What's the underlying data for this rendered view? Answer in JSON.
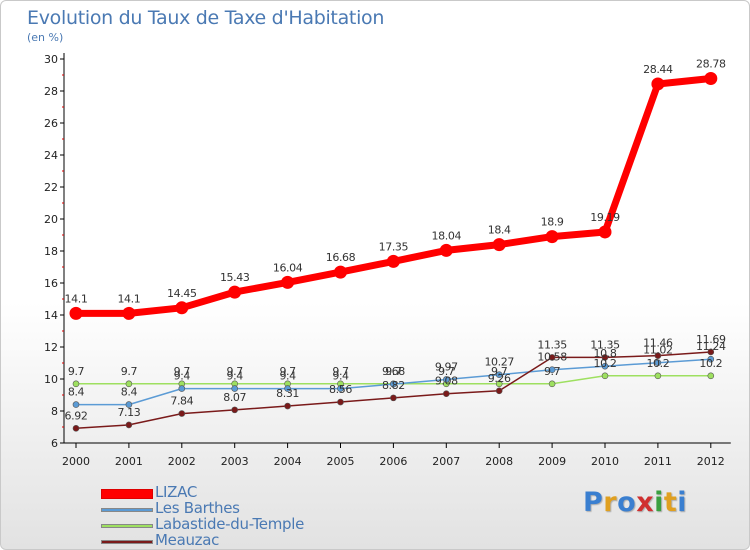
{
  "header": {
    "title": "Evolution du Taux de Taxe d'Habitation",
    "subtitle": "(en %)"
  },
  "brand": {
    "logo_text": "Proxiti"
  },
  "chart_data": {
    "type": "line",
    "title": "Evolution du Taux de Taxe d'Habitation",
    "ylabel": "(en %)",
    "xlabel": "",
    "ylim": [
      6,
      30
    ],
    "yticks": [
      6,
      8,
      10,
      12,
      14,
      16,
      18,
      20,
      22,
      24,
      26,
      28,
      30
    ],
    "x": [
      "2000",
      "2001",
      "2002",
      "2003",
      "2004",
      "2005",
      "2006",
      "2007",
      "2008",
      "2009",
      "2010",
      "2011",
      "2012"
    ],
    "grid": false,
    "legend": "bottom-left",
    "series": [
      {
        "name": "LIZAC",
        "color": "#ff0000",
        "values": [
          14.1,
          14.1,
          14.45,
          15.43,
          16.04,
          16.68,
          17.35,
          18.04,
          18.4,
          18.9,
          19.19,
          28.44,
          28.78
        ],
        "labels": [
          "14.1",
          "14.1",
          "14.45",
          "15.43",
          "16.04",
          "16.68",
          "17.35",
          "18.04",
          "18.4",
          "18.9",
          "19.19",
          "28.44",
          "28.78"
        ]
      },
      {
        "name": "Les Barthes",
        "color": "#5b9bd5",
        "values": [
          8.4,
          8.4,
          9.4,
          9.4,
          9.4,
          9.4,
          9.68,
          9.97,
          10.27,
          10.58,
          10.8,
          11.02,
          11.24
        ],
        "labels": [
          "8.4",
          "8.4",
          "9.4",
          "9.4",
          "9.4",
          "9.4",
          "9.68",
          "9.97",
          "10.27",
          "10.58",
          "10.8",
          "11.02",
          "11.24"
        ]
      },
      {
        "name": "Labastide-du-Temple",
        "color": "#9ee060",
        "values": [
          9.7,
          9.7,
          9.7,
          9.7,
          9.7,
          9.7,
          9.7,
          9.7,
          9.7,
          9.7,
          10.2,
          10.2,
          10.2
        ],
        "labels": [
          "9.7",
          "9.7",
          "9.7",
          "9.7",
          "9.7",
          "9.7",
          "9.7",
          "9.7",
          "9.7",
          "9.7",
          "10.2",
          "10.2",
          "10.2"
        ]
      },
      {
        "name": "Meauzac",
        "color": "#7a1a1a",
        "values": [
          6.92,
          7.13,
          7.84,
          8.07,
          8.31,
          8.56,
          8.82,
          9.08,
          9.26,
          11.35,
          11.35,
          11.46,
          11.69
        ],
        "labels": [
          "6.92",
          "7.13",
          "7.84",
          "8.07",
          "8.31",
          "8.56",
          "8.82",
          "9.08",
          "9.26",
          "11.35",
          "11.35",
          "11.46",
          "11.69"
        ]
      }
    ]
  }
}
